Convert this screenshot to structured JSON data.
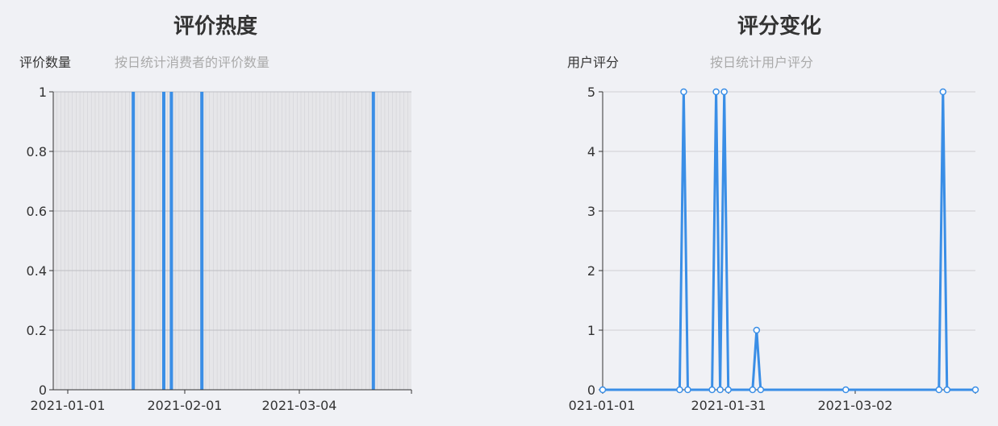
{
  "charts": [
    {
      "id": "review-count",
      "title": "评价热度",
      "ylabel": "评价数量",
      "subtitle": "按日统计消费者的评价数量",
      "x_tick_labels": [
        "2021-01-01",
        "2021-02-01",
        "2021-03-04"
      ],
      "y_tick_labels": [
        "0",
        "0.2",
        "0.4",
        "0.6",
        "0.8",
        "1"
      ]
    },
    {
      "id": "user-rating",
      "title": "评分变化",
      "ylabel": "用户评分",
      "subtitle": "按日统计用户评分",
      "x_tick_labels": [
        "021-01-01",
        "2021-01-31",
        "2021-03-02"
      ],
      "y_tick_labels": [
        "0",
        "1",
        "2",
        "3",
        "4",
        "5"
      ]
    }
  ],
  "chart_data": [
    {
      "type": "bar",
      "title": "评价热度",
      "subtitle": "按日统计消费者的评价数量",
      "ylabel": "评价数量",
      "xlabel": "",
      "ylim": [
        0,
        1
      ],
      "x_range": [
        "2021-01-01",
        "2021-04-05"
      ],
      "grid": true,
      "color": "#3a8ee6",
      "series": [
        {
          "x": [
            "2021-01-22",
            "2021-01-30",
            "2021-02-01",
            "2021-02-09",
            "2021-03-26"
          ],
          "values": [
            1,
            1,
            1,
            1,
            1
          ]
        }
      ]
    },
    {
      "type": "line",
      "title": "评分变化",
      "subtitle": "按日统计用户评分",
      "ylabel": "用户评分",
      "xlabel": "",
      "ylim": [
        0,
        5
      ],
      "x_range": [
        "2021-01-01",
        "2021-04-03"
      ],
      "grid": true,
      "color": "#3a8ee6",
      "series": [
        {
          "x": [
            "2021-01-01",
            "2021-01-20",
            "2021-01-21",
            "2021-01-22",
            "2021-01-28",
            "2021-01-29",
            "2021-01-30",
            "2021-01-31",
            "2021-02-01",
            "2021-02-07",
            "2021-02-08",
            "2021-02-09",
            "2021-03-02",
            "2021-03-25",
            "2021-03-26",
            "2021-03-27",
            "2021-04-03"
          ],
          "values": [
            0,
            0,
            5,
            0,
            0,
            5,
            0,
            5,
            0,
            0,
            1,
            0,
            0,
            0,
            5,
            0,
            0
          ]
        }
      ]
    }
  ]
}
